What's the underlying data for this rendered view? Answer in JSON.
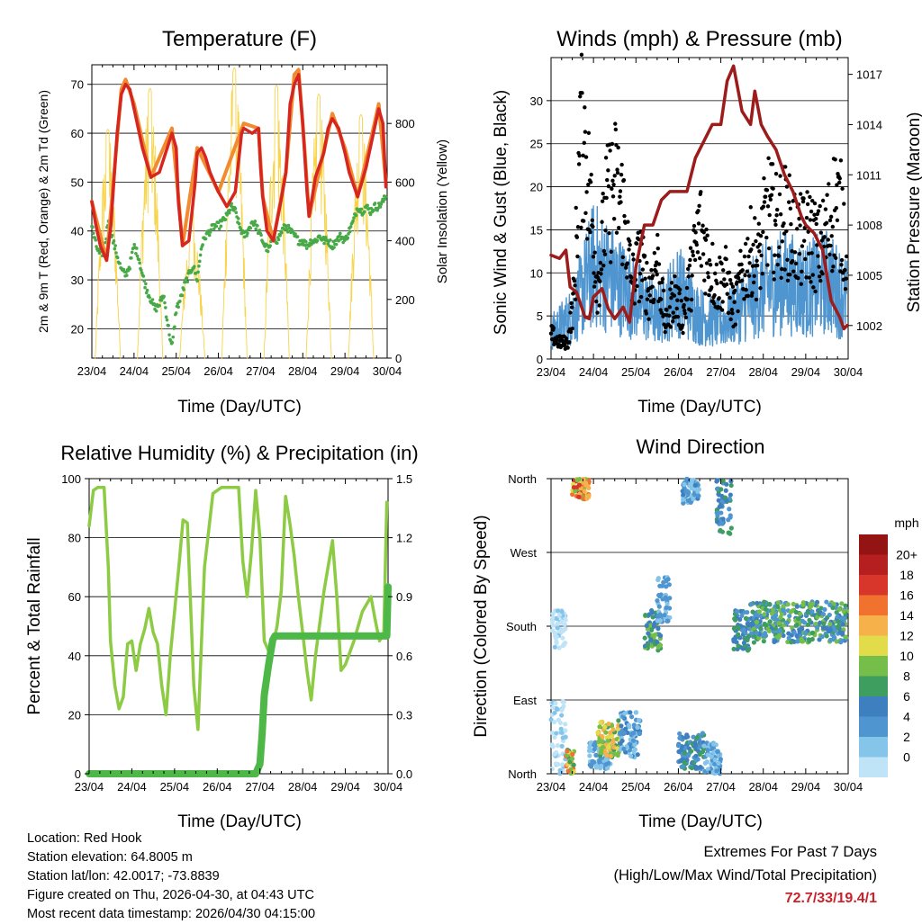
{
  "chart_data": [
    {
      "type": "line",
      "title": "Temperature (F)",
      "xlabel": "Time (Day/UTC)",
      "ylabel": "2m & 9m T (Red, Orange) & 2m Td (Green)",
      "ylabel_right": "Solar Insolation (Yellow)",
      "x_ticks": [
        "23/04",
        "24/04",
        "25/04",
        "26/04",
        "27/04",
        "28/04",
        "29/04",
        "30/04"
      ],
      "xlim": [
        0,
        7
      ],
      "ylim": [
        14,
        74
      ],
      "y_ticks": [
        20,
        30,
        40,
        50,
        60,
        70
      ],
      "ylim_right": [
        0,
        1000
      ],
      "y_ticks_right": [
        0,
        200,
        400,
        600,
        800
      ],
      "series": [
        {
          "name": "2m T",
          "color": "#d62620",
          "x": [
            0,
            0.1,
            0.2,
            0.3,
            0.35,
            0.45,
            0.6,
            0.7,
            0.8,
            0.9,
            1.0,
            1.2,
            1.4,
            1.6,
            1.75,
            1.9,
            2.0,
            2.05,
            2.15,
            2.3,
            2.45,
            2.5,
            2.6,
            2.7,
            2.8,
            2.9,
            3.0,
            3.2,
            3.4,
            3.5,
            3.55,
            3.6,
            3.8,
            3.95,
            4.0,
            4.05,
            4.15,
            4.3,
            4.5,
            4.6,
            4.7,
            4.8,
            4.9,
            5.0,
            5.05,
            5.1,
            5.15,
            5.3,
            5.5,
            5.6,
            5.7,
            5.85,
            6.0,
            6.1,
            6.3,
            6.5,
            6.7,
            6.8,
            6.9,
            6.97
          ],
          "y": [
            46,
            41,
            37,
            35,
            34,
            41,
            60,
            68,
            70,
            69,
            65,
            57,
            51,
            52,
            56,
            60,
            57,
            46,
            37,
            38,
            50,
            56,
            57,
            55,
            52,
            50,
            48,
            45,
            48,
            56,
            60,
            61,
            60,
            61,
            53,
            47,
            40,
            38,
            47,
            52,
            66,
            70,
            72,
            62,
            55,
            48,
            43,
            51,
            56,
            61,
            63,
            61,
            56,
            52,
            47,
            53,
            61,
            65,
            62,
            49
          ]
        },
        {
          "name": "9m T",
          "color": "#f28a30",
          "x": [
            0,
            0.35,
            0.7,
            0.8,
            1.0,
            1.4,
            1.9,
            2.05,
            2.15,
            2.5,
            3.0,
            3.6,
            3.95,
            4.05,
            4.3,
            4.6,
            4.8,
            4.9,
            5.05,
            5.15,
            5.7,
            6.0,
            6.3,
            6.7,
            6.8,
            6.97
          ],
          "y": [
            46,
            34,
            69,
            71,
            66,
            51,
            61,
            47,
            37,
            57,
            48,
            62,
            61,
            47,
            38,
            52,
            72,
            73,
            56,
            43,
            64,
            57,
            47,
            62,
            66,
            50
          ]
        },
        {
          "name": "2m Td",
          "color": "#47a947",
          "x": [
            0,
            0.1,
            0.2,
            0.3,
            0.4,
            0.5,
            0.6,
            0.7,
            0.8,
            0.9,
            1.0,
            1.1,
            1.2,
            1.3,
            1.4,
            1.5,
            1.6,
            1.7,
            1.8,
            1.9,
            2.0,
            2.1,
            2.2,
            2.3,
            2.4,
            2.5,
            2.6,
            2.7,
            2.8,
            2.9,
            3.0,
            3.1,
            3.2,
            3.3,
            3.4,
            3.5,
            3.6,
            3.7,
            3.8,
            3.9,
            4.0,
            4.1,
            4.2,
            4.3,
            4.4,
            4.5,
            4.6,
            4.7,
            4.8,
            4.9,
            5.0,
            5.1,
            5.2,
            5.3,
            5.4,
            5.5,
            5.6,
            5.7,
            5.8,
            5.9,
            6.0,
            6.1,
            6.2,
            6.3,
            6.4,
            6.5,
            6.6,
            6.7,
            6.8,
            6.9,
            6.97
          ],
          "y": [
            41,
            37,
            35,
            36,
            43,
            38,
            35,
            32,
            31,
            33,
            37,
            35,
            31,
            28,
            26,
            24,
            25,
            27,
            21,
            16,
            24,
            26,
            29,
            31,
            33,
            30,
            37,
            39,
            40,
            41,
            41,
            42,
            43,
            45,
            44,
            41,
            39,
            40,
            42,
            41,
            39,
            37,
            36,
            39,
            38,
            40,
            41,
            40,
            39,
            38,
            38,
            37,
            38,
            38,
            39,
            38,
            38,
            37,
            38,
            39,
            38,
            40,
            42,
            45,
            44,
            45,
            44,
            45,
            45,
            46,
            47
          ]
        },
        {
          "name": "Solar Insolation",
          "color": "#f7d44a",
          "axis": "right",
          "day_peaks": [
            {
              "center": 0.38,
              "peak": 780
            },
            {
              "center": 1.38,
              "peak": 920
            },
            {
              "center": 2.38,
              "peak": 500
            },
            {
              "center": 3.38,
              "peak": 990
            },
            {
              "center": 4.38,
              "peak": 930
            },
            {
              "center": 5.38,
              "peak": 900
            },
            {
              "center": 6.38,
              "peak": 830
            }
          ]
        }
      ]
    },
    {
      "type": "line",
      "title": "Winds (mph) & Pressure (mb)",
      "xlabel": "Time (Day/UTC)",
      "ylabel": "Sonic Wind & Gust (Blue, Black)",
      "ylabel_right": "Station Pressure (Maroon)",
      "x_ticks": [
        "23/04",
        "24/04",
        "25/04",
        "26/04",
        "27/04",
        "28/04",
        "29/04",
        "30/04"
      ],
      "xlim": [
        0,
        7
      ],
      "ylim": [
        0,
        35
      ],
      "y_ticks": [
        0,
        5,
        10,
        15,
        20,
        25,
        30
      ],
      "ylim_right": [
        1000,
        1018
      ],
      "y_ticks_right": [
        1002,
        1005,
        1008,
        1011,
        1014,
        1017
      ],
      "series": [
        {
          "name": "Wind",
          "color": "#4f95cf",
          "x": [
            0,
            0.5,
            1.0,
            1.5,
            2.0,
            2.5,
            3.0,
            3.5,
            4.0,
            4.5,
            5.0,
            5.5,
            6.0,
            6.5,
            6.97
          ],
          "y": [
            3,
            5,
            11,
            9,
            7,
            5,
            8,
            5,
            4,
            6,
            8,
            9,
            8,
            9,
            7
          ]
        },
        {
          "name": "Gust",
          "color": "#000000",
          "x": [
            0,
            0.2,
            0.4,
            0.55,
            0.65,
            0.75,
            0.9,
            1.1,
            1.3,
            1.5,
            1.7,
            1.9,
            2.1,
            2.3,
            2.5,
            2.7,
            2.9,
            3.1,
            3.3,
            3.5,
            3.7,
            3.9,
            4.1,
            4.3,
            4.5,
            4.7,
            4.9,
            5.1,
            5.3,
            5.5,
            5.7,
            5.9,
            6.1,
            6.3,
            6.5,
            6.7,
            6.9,
            6.97
          ],
          "y": [
            3,
            2,
            2,
            8,
            22,
            28,
            20,
            9,
            18,
            21,
            18,
            9,
            12,
            8,
            12,
            4,
            8,
            5,
            10,
            16,
            12,
            9,
            10,
            6,
            10,
            13,
            12,
            18,
            16,
            17,
            15,
            14,
            15,
            13,
            15,
            19,
            16,
            10
          ]
        },
        {
          "name": "Station Pressure",
          "color": "#9c1c1c",
          "axis": "right",
          "x": [
            0,
            0.2,
            0.35,
            0.45,
            0.6,
            0.8,
            0.9,
            1.0,
            1.2,
            1.35,
            1.5,
            1.7,
            1.85,
            2.0,
            2.2,
            2.4,
            2.6,
            2.8,
            3.0,
            3.2,
            3.4,
            3.6,
            3.8,
            4.0,
            4.15,
            4.3,
            4.5,
            4.7,
            4.8,
            4.95,
            5.1,
            5.3,
            5.5,
            5.7,
            5.9,
            6.0,
            6.2,
            6.4,
            6.6,
            6.8,
            6.9,
            6.97
          ],
          "y": [
            1006.2,
            1006.0,
            1006.5,
            1004.3,
            1004.0,
            1002.5,
            1002.4,
            1003.7,
            1004.2,
            1003.0,
            1002.4,
            1003.1,
            1002.2,
            1005.5,
            1008.0,
            1008.0,
            1009.5,
            1010.0,
            1010.0,
            1010.0,
            1012.0,
            1013.0,
            1014.0,
            1014.0,
            1016.6,
            1017.5,
            1014.8,
            1014.0,
            1016.0,
            1014.0,
            1013.3,
            1012.5,
            1011.0,
            1010.0,
            1008.5,
            1008.0,
            1007.5,
            1006.5,
            1003.5,
            1002.5,
            1001.8,
            1002.0
          ]
        }
      ]
    },
    {
      "type": "line",
      "title": "Relative Humidity (%) & Precipitation (in)",
      "xlabel": "Time (Day/UTC)",
      "ylabel": "Percent & Total Rainfall",
      "x_ticks": [
        "23/04",
        "24/04",
        "25/04",
        "26/04",
        "27/04",
        "28/04",
        "29/04",
        "30/04"
      ],
      "xlim": [
        0,
        7
      ],
      "ylim": [
        0,
        100
      ],
      "y_ticks": [
        0,
        20,
        40,
        60,
        80,
        100
      ],
      "ylim_right": [
        0,
        1.5
      ],
      "y_ticks_right": [
        "0.0",
        "0.3",
        "0.6",
        "0.9",
        "1.2",
        "1.5"
      ],
      "series": [
        {
          "name": "Relative Humidity",
          "color": "#8ccb43",
          "x": [
            0,
            0.1,
            0.2,
            0.35,
            0.45,
            0.5,
            0.6,
            0.7,
            0.8,
            0.9,
            1.0,
            1.1,
            1.2,
            1.3,
            1.4,
            1.5,
            1.6,
            1.7,
            1.8,
            1.9,
            2.0,
            2.1,
            2.2,
            2.3,
            2.45,
            2.55,
            2.7,
            2.9,
            3.1,
            3.3,
            3.5,
            3.6,
            3.7,
            3.8,
            3.9,
            4.0,
            4.1,
            4.25,
            4.4,
            4.5,
            4.6,
            4.7,
            4.8,
            4.9,
            5.0,
            5.1,
            5.2,
            5.3,
            5.5,
            5.7,
            5.8,
            5.9,
            6.0,
            6.2,
            6.4,
            6.6,
            6.7,
            6.8,
            6.9,
            6.97
          ],
          "y": [
            84,
            96,
            97,
            97,
            70,
            45,
            30,
            22,
            26,
            44,
            45,
            35,
            44,
            49,
            56,
            48,
            44,
            30,
            20,
            40,
            55,
            70,
            86,
            85,
            30,
            15,
            70,
            95,
            97,
            97,
            97,
            72,
            60,
            75,
            96,
            80,
            45,
            40,
            50,
            62,
            94,
            85,
            74,
            60,
            48,
            35,
            25,
            40,
            62,
            79,
            60,
            35,
            37,
            45,
            55,
            60,
            52,
            45,
            48,
            92
          ]
        },
        {
          "name": "Total Rainfall",
          "color": "#4db847",
          "axis": "right",
          "x": [
            0,
            3.9,
            4.0,
            4.05,
            4.1,
            4.2,
            4.3,
            4.35,
            4.4,
            6.97,
            7.0
          ],
          "y": [
            0,
            0,
            0.05,
            0.2,
            0.4,
            0.55,
            0.68,
            0.7,
            0.7,
            0.7,
            0.95
          ]
        }
      ]
    },
    {
      "type": "scatter",
      "title": "Wind Direction",
      "xlabel": "Time (Day/UTC)",
      "ylabel": "Direction (Colored By Speed)",
      "x_ticks": [
        "23/04",
        "24/04",
        "25/04",
        "26/04",
        "27/04",
        "28/04",
        "29/04",
        "30/04"
      ],
      "xlim": [
        0,
        7
      ],
      "y_ticks": [
        "North",
        "East",
        "South",
        "West",
        "North"
      ],
      "colorbar": {
        "title": "mph",
        "labels": [
          "0",
          "2",
          "4",
          "6",
          "8",
          "10",
          "12",
          "14",
          "16",
          "18",
          "20+"
        ],
        "colors": [
          "#bfe3f7",
          "#86c5ea",
          "#4f95cf",
          "#3e7fbf",
          "#3d9e5f",
          "#75be4a",
          "#e2dc4a",
          "#f7b14a",
          "#f1712f",
          "#d8362a",
          "#b51f1f",
          "#941414"
        ]
      },
      "clusters": [
        {
          "x": [
            0.0,
            0.35
          ],
          "dir": [
            0,
            90
          ],
          "speed": [
            0,
            3
          ]
        },
        {
          "x": [
            0.0,
            0.35
          ],
          "dir": [
            150,
            200
          ],
          "speed": [
            0,
            3
          ]
        },
        {
          "x": [
            0.35,
            0.55
          ],
          "dir": [
            0,
            30
          ],
          "speed": [
            8,
            18
          ]
        },
        {
          "x": [
            0.5,
            0.9
          ],
          "dir": [
            335,
            360
          ],
          "speed": [
            10,
            20
          ]
        },
        {
          "x": [
            0.9,
            1.4
          ],
          "dir": [
            5,
            40
          ],
          "speed": [
            2,
            6
          ]
        },
        {
          "x": [
            1.1,
            1.65
          ],
          "dir": [
            20,
            65
          ],
          "speed": [
            8,
            16
          ]
        },
        {
          "x": [
            1.6,
            2.1
          ],
          "dir": [
            20,
            75
          ],
          "speed": [
            2,
            7
          ]
        },
        {
          "x": [
            2.2,
            2.6
          ],
          "dir": [
            150,
            200
          ],
          "speed": [
            6,
            12
          ]
        },
        {
          "x": [
            2.5,
            2.8
          ],
          "dir": [
            185,
            240
          ],
          "speed": [
            3,
            6
          ]
        },
        {
          "x": [
            3.0,
            3.6
          ],
          "dir": [
            5,
            50
          ],
          "speed": [
            4,
            9
          ]
        },
        {
          "x": [
            3.1,
            3.5
          ],
          "dir": [
            330,
            360
          ],
          "speed": [
            2,
            7
          ]
        },
        {
          "x": [
            3.6,
            4.0
          ],
          "dir": [
            0,
            40
          ],
          "speed": [
            2,
            6
          ]
        },
        {
          "x": [
            3.9,
            4.25
          ],
          "dir": [
            290,
            360
          ],
          "speed": [
            4,
            9
          ]
        },
        {
          "x": [
            4.3,
            4.7
          ],
          "dir": [
            150,
            200
          ],
          "speed": [
            4,
            10
          ]
        },
        {
          "x": [
            4.7,
            6.97
          ],
          "dir": [
            160,
            210
          ],
          "speed": [
            4,
            12
          ]
        }
      ]
    }
  ],
  "info": {
    "location": "Location: Red Hook",
    "elevation": "Station elevation: 64.8005 m",
    "latlon": "Station lat/lon: 42.0017; -73.8839",
    "created": "Figure created on Thu, 2026-04-30, at 04:43 UTC",
    "recent": "Most recent data timestamp: 2026/04/30 04:15:00"
  },
  "extremes": {
    "title": "Extremes For Past 7 Days",
    "subtitle": "(High/Low/Max Wind/Total Precipitation)",
    "values": "72.7/33/19.4/1"
  }
}
